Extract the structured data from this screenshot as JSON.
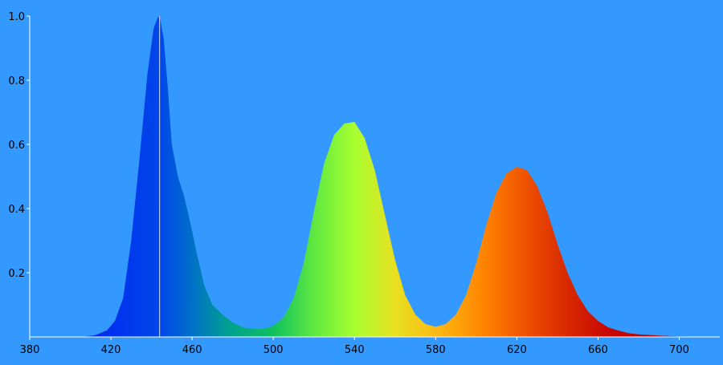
{
  "chart_data": {
    "type": "area",
    "title": "",
    "xlabel": "",
    "ylabel": "",
    "xlim": [
      380,
      720
    ],
    "ylim": [
      0,
      1.0
    ],
    "x_ticks": [
      380,
      420,
      460,
      500,
      540,
      580,
      620,
      660,
      700
    ],
    "y_ticks": [
      0.2,
      0.4,
      0.6,
      0.8,
      1.0
    ],
    "x_tick_labels": [
      "380",
      "420",
      "460",
      "500",
      "540",
      "580",
      "620",
      "660",
      "700"
    ],
    "y_tick_labels": [
      "0.2",
      "0.4",
      "0.6",
      "0.8",
      "1.0"
    ],
    "grid": false,
    "legend": "none",
    "marker_line_x": 444,
    "colors": {
      "background": "#3399ff",
      "axis": "#ffffff",
      "marker_line": "#ffffff"
    },
    "spectrum_fill_stops": [
      {
        "nm": 380,
        "color": "#0010e0"
      },
      {
        "nm": 420,
        "color": "#0030f0"
      },
      {
        "nm": 445,
        "color": "#0048e8"
      },
      {
        "nm": 460,
        "color": "#0070c8"
      },
      {
        "nm": 478,
        "color": "#00a090"
      },
      {
        "nm": 500,
        "color": "#10c060"
      },
      {
        "nm": 520,
        "color": "#60e840"
      },
      {
        "nm": 540,
        "color": "#a8ff30"
      },
      {
        "nm": 560,
        "color": "#e8e020"
      },
      {
        "nm": 585,
        "color": "#ffb010"
      },
      {
        "nm": 605,
        "color": "#ff8000"
      },
      {
        "nm": 625,
        "color": "#ee5000"
      },
      {
        "nm": 645,
        "color": "#d82800"
      },
      {
        "nm": 665,
        "color": "#c80800"
      },
      {
        "nm": 720,
        "color": "#a00000"
      }
    ],
    "series": [
      {
        "x": [
          380,
          405,
          412,
          418,
          422,
          426,
          430,
          434,
          438,
          441,
          443,
          444,
          446,
          448,
          450,
          453,
          456,
          459,
          462,
          466,
          470,
          475,
          480,
          485,
          490,
          495,
          500,
          505,
          510,
          515,
          520,
          525,
          530,
          535,
          540,
          545,
          550,
          555,
          560,
          565,
          570,
          575,
          580,
          585,
          590,
          595,
          600,
          605,
          610,
          615,
          620,
          625,
          630,
          635,
          640,
          645,
          650,
          655,
          660,
          665,
          670,
          675,
          680,
          690,
          700,
          710,
          720
        ],
        "values": [
          0.0,
          0.0,
          0.005,
          0.02,
          0.05,
          0.12,
          0.3,
          0.55,
          0.82,
          0.96,
          0.995,
          1.0,
          0.93,
          0.78,
          0.6,
          0.5,
          0.44,
          0.36,
          0.27,
          0.16,
          0.1,
          0.07,
          0.045,
          0.03,
          0.025,
          0.025,
          0.035,
          0.06,
          0.12,
          0.23,
          0.39,
          0.54,
          0.63,
          0.665,
          0.67,
          0.62,
          0.52,
          0.38,
          0.24,
          0.13,
          0.07,
          0.04,
          0.032,
          0.04,
          0.07,
          0.13,
          0.23,
          0.35,
          0.45,
          0.51,
          0.53,
          0.52,
          0.47,
          0.39,
          0.29,
          0.2,
          0.13,
          0.08,
          0.05,
          0.03,
          0.02,
          0.012,
          0.008,
          0.004,
          0.002,
          0.0,
          0.0
        ]
      }
    ]
  }
}
